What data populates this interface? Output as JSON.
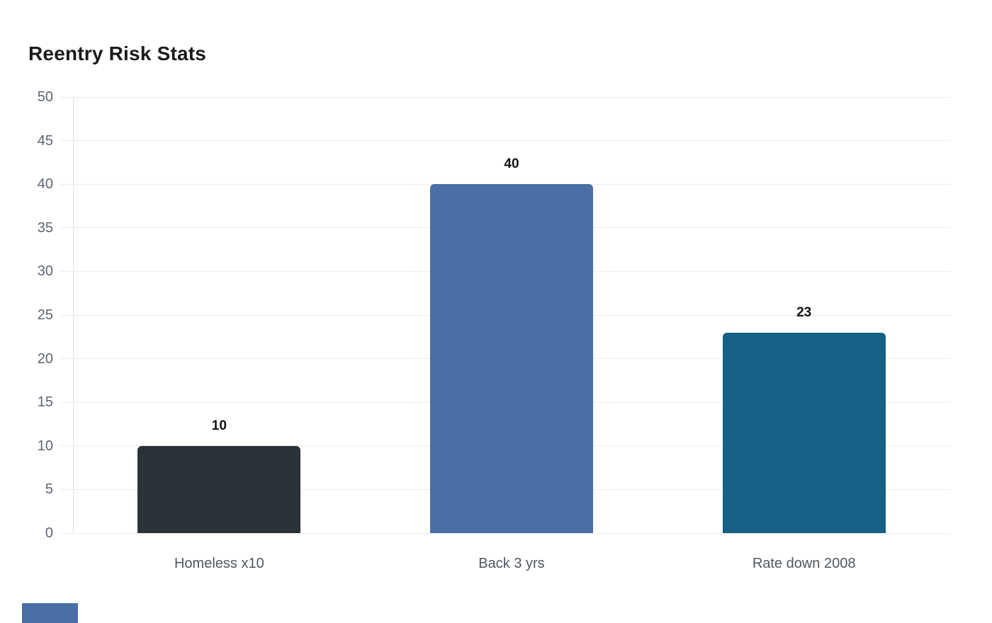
{
  "chart_data": {
    "type": "bar",
    "title": "Reentry Risk Stats",
    "categories": [
      "Homeless x10",
      "Back 3 yrs",
      "Rate down 2008"
    ],
    "values": [
      10,
      40,
      23
    ],
    "data_labels": [
      "10",
      "40",
      "23"
    ],
    "bar_colors": [
      "#2b3338",
      "#4a6fa6",
      "#156084"
    ],
    "xlabel": "",
    "ylabel": "",
    "ylim": [
      0,
      50
    ],
    "yticks": [
      0,
      5,
      10,
      15,
      20,
      25,
      30,
      35,
      40,
      45,
      50
    ],
    "grid": true,
    "legend": "none",
    "colors": {
      "grid_line": "#ececec",
      "axis_line": "#e0e0e0",
      "y_tick_text": "#5d656f",
      "x_tick_text": "#50575f",
      "value_label_text": "#101113",
      "title_text": "#1b1b1b",
      "background": "#ffffff"
    }
  },
  "misc": {
    "partial_blue_element": {
      "color": "#4a6fa6"
    }
  }
}
